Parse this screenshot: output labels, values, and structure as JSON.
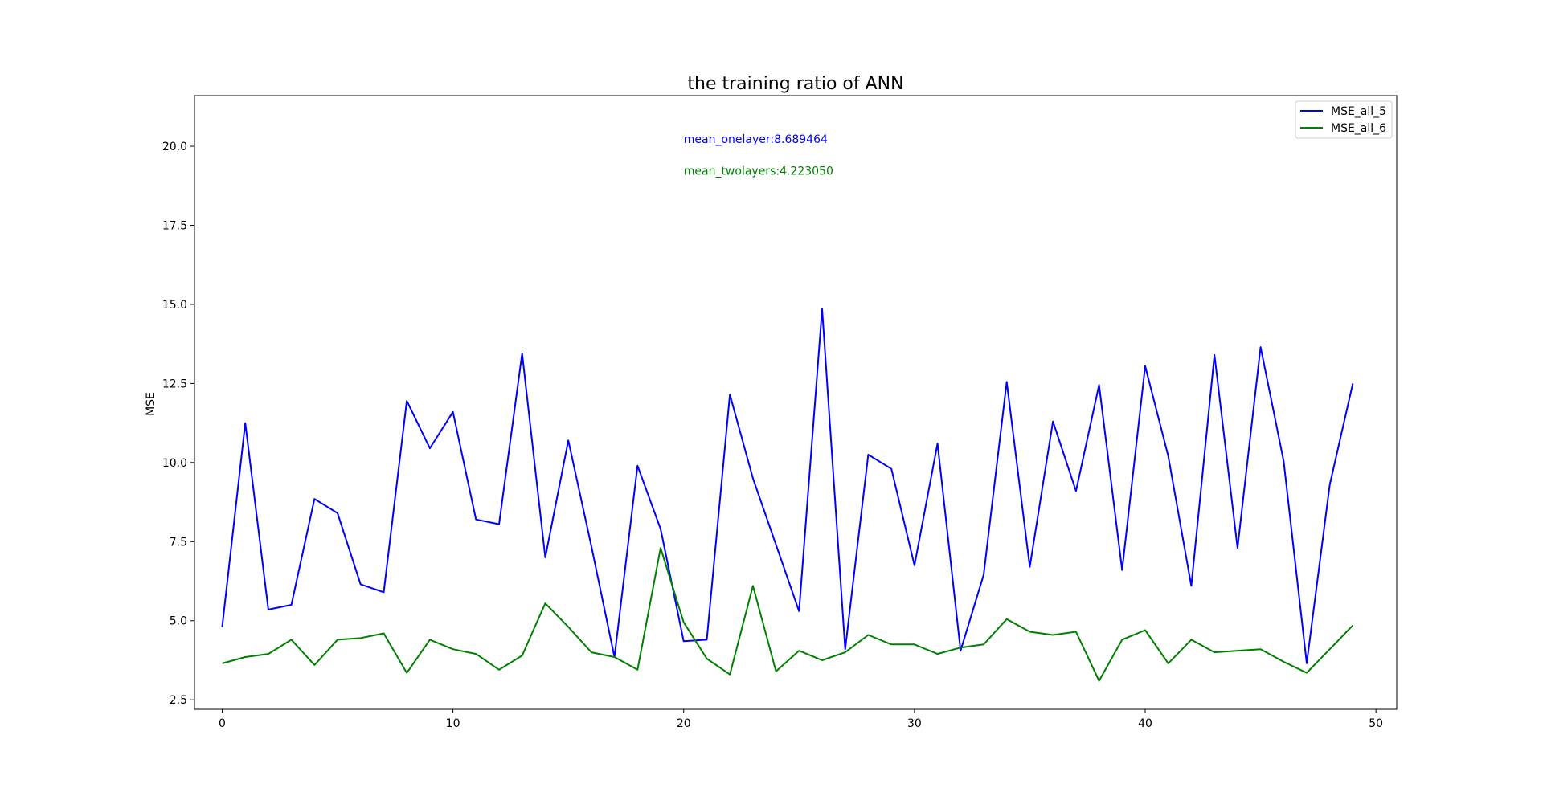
{
  "chart_data": {
    "type": "line",
    "title": "the training ratio of ANN",
    "xlabel": "",
    "ylabel": "MSE",
    "xlim": [
      -1.2,
      50.9
    ],
    "ylim": [
      2.2,
      21.6
    ],
    "x_ticks": [
      0,
      10,
      20,
      30,
      40,
      50
    ],
    "y_ticks": [
      2.5,
      5.0,
      7.5,
      10.0,
      12.5,
      15.0,
      17.5,
      20.0
    ],
    "x_tick_labels": [
      "0",
      "10",
      "20",
      "30",
      "40",
      "50"
    ],
    "y_tick_labels": [
      "2.5",
      "5.0",
      "7.5",
      "10.0",
      "12.5",
      "15.0",
      "17.5",
      "20.0"
    ],
    "grid": false,
    "legend_position": "top-right",
    "x": [
      0,
      1,
      2,
      3,
      4,
      5,
      6,
      7,
      8,
      9,
      10,
      11,
      12,
      13,
      14,
      15,
      16,
      17,
      18,
      19,
      20,
      21,
      22,
      23,
      24,
      25,
      26,
      27,
      28,
      29,
      30,
      31,
      32,
      33,
      34,
      35,
      36,
      37,
      38,
      39,
      40,
      41,
      42,
      43,
      44,
      45,
      46,
      47,
      48,
      49
    ],
    "series": [
      {
        "name": "MSE_all_5",
        "color": "#0000ff",
        "values": [
          4.8,
          11.25,
          5.35,
          5.5,
          8.85,
          8.4,
          6.15,
          5.9,
          11.95,
          10.45,
          11.6,
          8.2,
          8.05,
          13.45,
          7.0,
          10.7,
          7.35,
          3.85,
          9.9,
          7.9,
          4.35,
          4.4,
          12.15,
          9.5,
          7.4,
          5.3,
          14.85,
          4.1,
          10.25,
          9.8,
          6.75,
          10.6,
          4.05,
          6.45,
          12.55,
          6.7,
          11.3,
          9.1,
          12.45,
          6.6,
          13.05,
          10.2,
          6.1,
          13.4,
          7.3,
          13.65,
          10.05,
          3.65,
          9.3,
          12.5
        ]
      },
      {
        "name": "MSE_all_6",
        "color": "#008000",
        "values": [
          3.65,
          3.85,
          3.95,
          4.4,
          3.6,
          4.4,
          4.45,
          4.6,
          3.35,
          4.4,
          4.1,
          3.95,
          3.45,
          3.9,
          5.55,
          4.8,
          4.0,
          3.85,
          3.45,
          7.3,
          4.95,
          3.8,
          3.3,
          6.1,
          3.4,
          4.05,
          3.75,
          4.0,
          4.55,
          4.25,
          4.25,
          3.95,
          4.15,
          4.25,
          5.05,
          4.65,
          4.55,
          4.65,
          3.1,
          4.4,
          4.7,
          3.65,
          4.4,
          4.0,
          4.05,
          4.1,
          3.7,
          3.35,
          4.1,
          4.85
        ]
      }
    ],
    "annotations": [
      {
        "text": "mean_onelayer:8.689464",
        "x": 20,
        "y": 20.1,
        "color": "#0000ff"
      },
      {
        "text": "mean_twolayers:4.223050",
        "x": 20,
        "y": 19.1,
        "color": "#008000"
      }
    ]
  }
}
